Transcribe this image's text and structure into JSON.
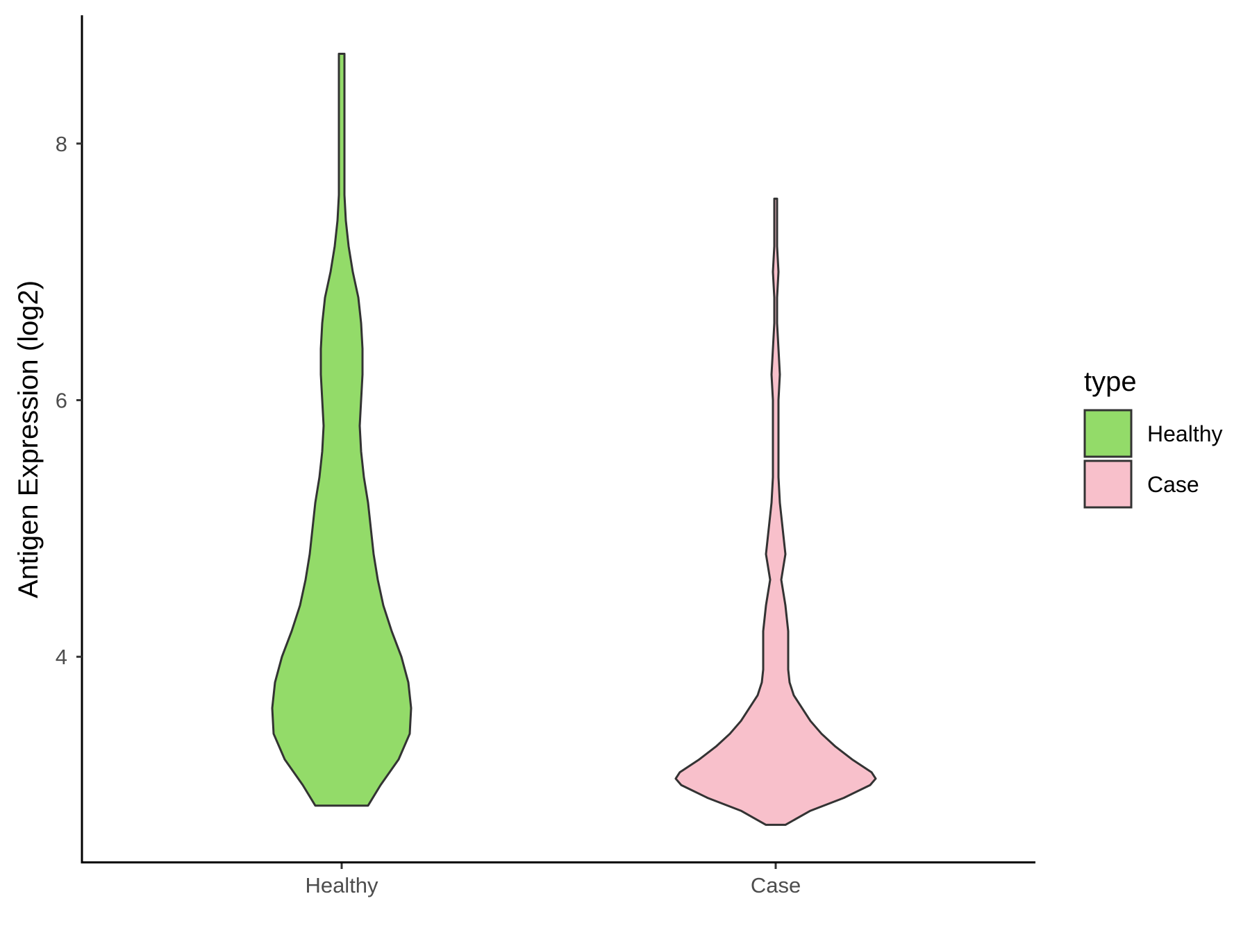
{
  "chart_data": {
    "type": "violin",
    "xlabel": "",
    "ylabel": "Antigen Expression (log2)",
    "categories": [
      "Healthy",
      "Case"
    ],
    "y_ticks": [
      4,
      6,
      8
    ],
    "ylim": [
      2.4,
      9.0
    ],
    "grid": false,
    "legend": {
      "title": "type",
      "position": "right",
      "entries": [
        {
          "label": "Healthy",
          "color": "#93DB69"
        },
        {
          "label": "Case",
          "color": "#F8C0CB"
        }
      ]
    },
    "series": [
      {
        "category": "Healthy",
        "color": "#93DB69",
        "min": 2.84,
        "max": 8.7,
        "density_profile": [
          [
            2.84,
            0.19
          ],
          [
            3.0,
            0.28
          ],
          [
            3.2,
            0.41
          ],
          [
            3.4,
            0.49
          ],
          [
            3.6,
            0.5
          ],
          [
            3.8,
            0.48
          ],
          [
            4.0,
            0.43
          ],
          [
            4.2,
            0.36
          ],
          [
            4.4,
            0.3
          ],
          [
            4.6,
            0.26
          ],
          [
            4.8,
            0.23
          ],
          [
            5.0,
            0.21
          ],
          [
            5.2,
            0.19
          ],
          [
            5.4,
            0.16
          ],
          [
            5.6,
            0.14
          ],
          [
            5.8,
            0.13
          ],
          [
            6.0,
            0.14
          ],
          [
            6.2,
            0.15
          ],
          [
            6.4,
            0.15
          ],
          [
            6.6,
            0.14
          ],
          [
            6.8,
            0.12
          ],
          [
            7.0,
            0.08
          ],
          [
            7.2,
            0.05
          ],
          [
            7.4,
            0.03
          ],
          [
            7.6,
            0.02
          ],
          [
            8.0,
            0.02
          ],
          [
            8.4,
            0.02
          ],
          [
            8.7,
            0.02
          ]
        ]
      },
      {
        "category": "Case",
        "color": "#F8C0CB",
        "min": 2.69,
        "max": 7.57,
        "density_profile": [
          [
            2.69,
            0.07
          ],
          [
            2.8,
            0.25
          ],
          [
            2.9,
            0.49
          ],
          [
            3.0,
            0.68
          ],
          [
            3.05,
            0.72
          ],
          [
            3.1,
            0.69
          ],
          [
            3.2,
            0.55
          ],
          [
            3.3,
            0.43
          ],
          [
            3.4,
            0.33
          ],
          [
            3.5,
            0.25
          ],
          [
            3.6,
            0.19
          ],
          [
            3.7,
            0.13
          ],
          [
            3.8,
            0.1
          ],
          [
            3.9,
            0.09
          ],
          [
            4.0,
            0.09
          ],
          [
            4.2,
            0.09
          ],
          [
            4.4,
            0.07
          ],
          [
            4.6,
            0.04
          ],
          [
            4.8,
            0.07
          ],
          [
            5.0,
            0.05
          ],
          [
            5.2,
            0.03
          ],
          [
            5.4,
            0.02
          ],
          [
            5.6,
            0.02
          ],
          [
            5.8,
            0.02
          ],
          [
            6.0,
            0.02
          ],
          [
            6.2,
            0.03
          ],
          [
            6.4,
            0.02
          ],
          [
            6.6,
            0.01
          ],
          [
            6.8,
            0.01
          ],
          [
            7.0,
            0.02
          ],
          [
            7.2,
            0.01
          ],
          [
            7.4,
            0.01
          ],
          [
            7.57,
            0.01
          ]
        ]
      }
    ]
  }
}
